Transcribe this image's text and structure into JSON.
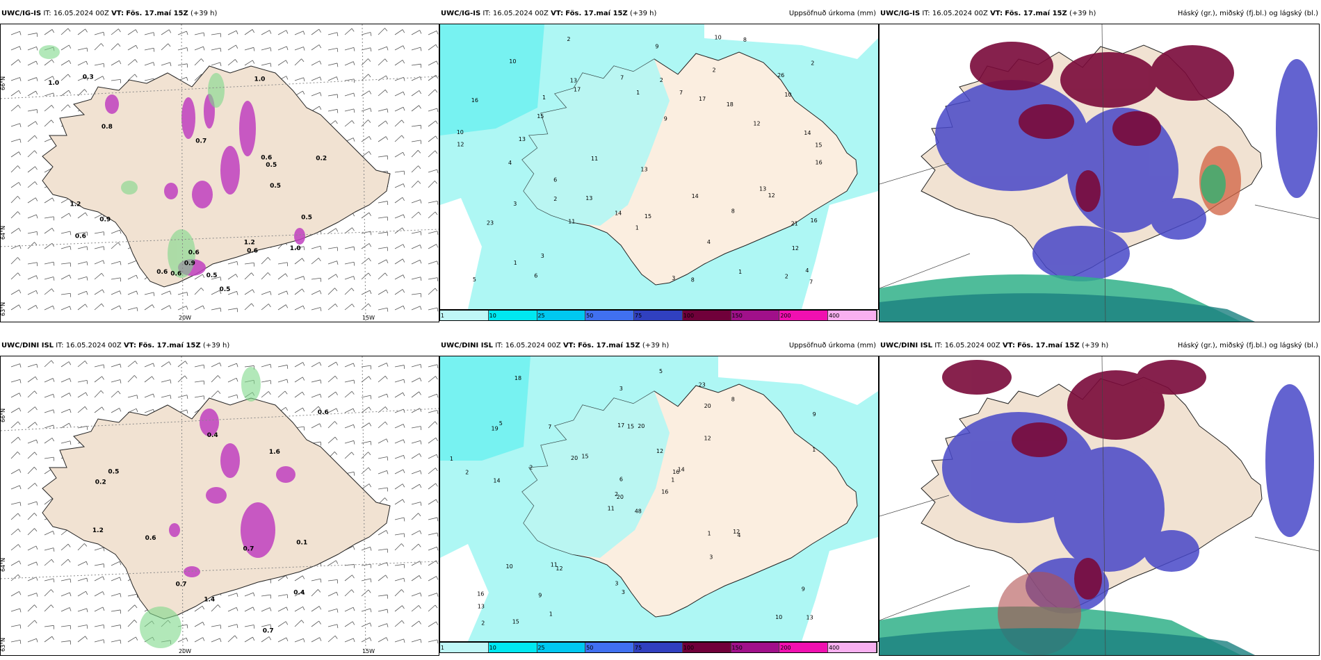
{
  "rows": [
    {
      "model": "UWC/IG-IS",
      "it_label": "IT:",
      "it_value": "16.05.2024 00Z",
      "vt_label": "VT:",
      "vt_value": "Fös. 17.maí 15Z",
      "lead": "(+39 h)"
    },
    {
      "model": "UWC/DINI ISL",
      "it_label": "IT:",
      "it_value": "16.05.2024 00Z",
      "vt_label": "VT:",
      "vt_value": "Fös. 17.maí 15Z",
      "lead": "(+39 h)"
    }
  ],
  "precip_title": "Uppsöfnuð úrkoma (mm)",
  "cloud_title": "Háský (gr.), miðský (fj.bl.) og lágský (bl.)",
  "axis_labels": {
    "lat_66": "66°N",
    "lat_64": "64°N",
    "lat_63": "63°N",
    "lon_20": "20W",
    "lon_15": "15W"
  },
  "colorbar": {
    "ticks": [
      "1",
      "10",
      "25",
      "50",
      "75",
      "100",
      "150",
      "200",
      "400"
    ],
    "colors": [
      "#bff7f7",
      "#00e8f0",
      "#00c8f0",
      "#4070f0",
      "#3040c0",
      "#70003a",
      "#a0108a",
      "#f010b0",
      "#f8b0f0"
    ]
  },
  "precip_values_top": [
    "17",
    "14",
    "17",
    "15",
    "11",
    "16",
    "13",
    "10",
    "21",
    "26",
    "15",
    "12",
    "12",
    "11",
    "23",
    "13",
    "6",
    "10",
    "2",
    "7",
    "4",
    "2",
    "1",
    "3",
    "9",
    "8",
    "5",
    "4",
    "3",
    "2",
    "6",
    "7",
    "4",
    "9",
    "13",
    "12",
    "16",
    "14",
    "10",
    "13",
    "8",
    "16",
    "14",
    "15",
    "12",
    "10",
    "7",
    "18",
    "13",
    "3",
    "2",
    "1",
    "1",
    "2",
    "2",
    "1",
    "1",
    "8"
  ],
  "precip_values_bottom": [
    "48",
    "19",
    "20",
    "16",
    "16",
    "12",
    "23",
    "20",
    "20",
    "16",
    "18",
    "13",
    "14",
    "9",
    "11",
    "12",
    "15",
    "17",
    "12",
    "10",
    "15",
    "13",
    "9",
    "15",
    "14",
    "4",
    "5",
    "3",
    "2",
    "1",
    "1",
    "2",
    "3",
    "6",
    "7",
    "8",
    "11",
    "10",
    "9",
    "12",
    "5",
    "20",
    "2",
    "3",
    "1",
    "1",
    "1",
    "2",
    "3"
  ],
  "wind_values_top": [
    "0.6",
    "0.6",
    "0.7",
    "1.0",
    "0.2",
    "0.6",
    "0.9",
    "1.2",
    "0.6",
    "0.8",
    "0.9",
    "1.0",
    "0.6",
    "0.5",
    "1.0",
    "0.5",
    "1.2",
    "0.6",
    "0.5",
    "0.5",
    "0.3",
    "0.5"
  ],
  "wind_values_bottom": [
    "0.4",
    "0.7",
    "0.6",
    "1.2",
    "0.5",
    "0.7",
    "1.6",
    "0.4",
    "1.4",
    "0.1",
    "0.2",
    "0.6",
    "0.7"
  ]
}
